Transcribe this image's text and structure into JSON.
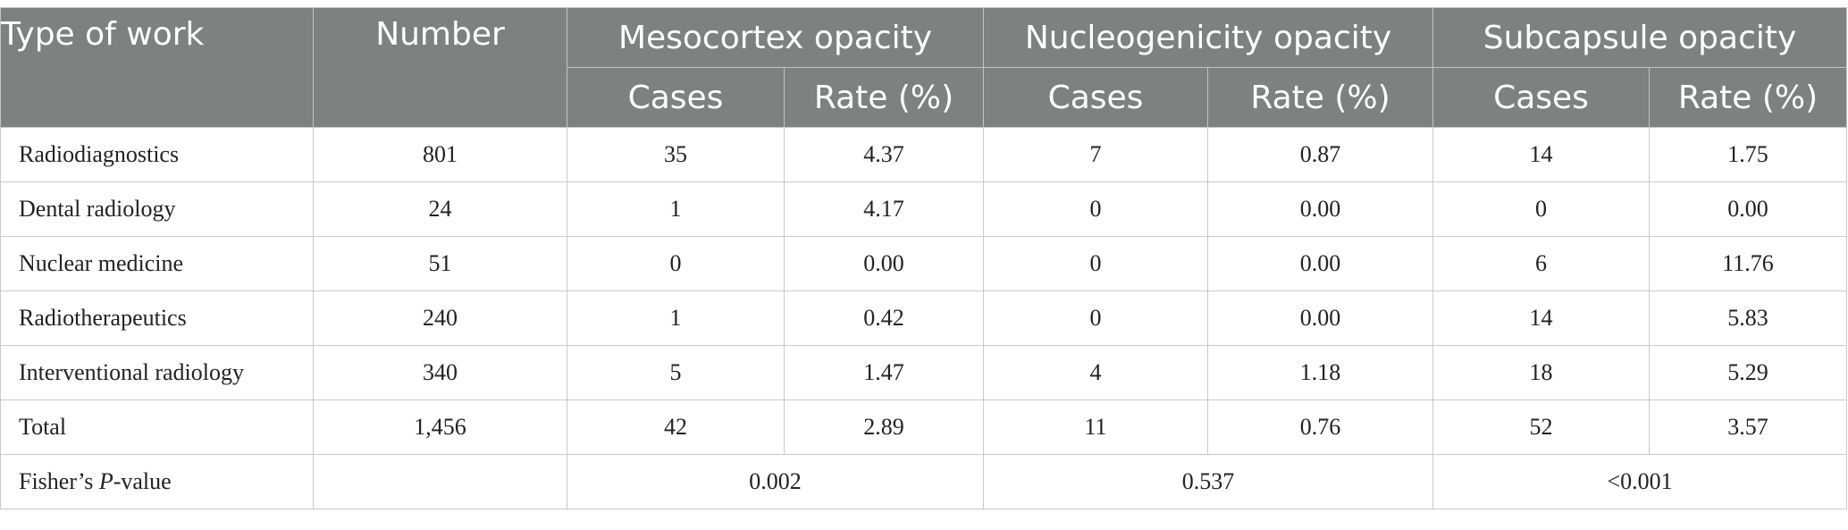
{
  "table": {
    "headers": {
      "type_of_work": "Type of work",
      "number": "Number",
      "groups": [
        "Mesocortex opacity",
        "Nucleogenicity opacity",
        "Subcapsule opacity"
      ],
      "sub": {
        "cases": "Cases",
        "rate": "Rate (%)"
      }
    },
    "rows": [
      {
        "type": "Radiodiagnostics",
        "number": "801",
        "meso_cases": "35",
        "meso_rate": "4.37",
        "nucleo_cases": "7",
        "nucleo_rate": "0.87",
        "sub_cases": "14",
        "sub_rate": "1.75"
      },
      {
        "type": "Dental radiology",
        "number": "24",
        "meso_cases": "1",
        "meso_rate": "4.17",
        "nucleo_cases": "0",
        "nucleo_rate": "0.00",
        "sub_cases": "0",
        "sub_rate": "0.00"
      },
      {
        "type": "Nuclear medicine",
        "number": "51",
        "meso_cases": "0",
        "meso_rate": "0.00",
        "nucleo_cases": "0",
        "nucleo_rate": "0.00",
        "sub_cases": "6",
        "sub_rate": "11.76"
      },
      {
        "type": "Radiotherapeutics",
        "number": "240",
        "meso_cases": "1",
        "meso_rate": "0.42",
        "nucleo_cases": "0",
        "nucleo_rate": "0.00",
        "sub_cases": "14",
        "sub_rate": "5.83"
      },
      {
        "type": "Interventional radiology",
        "number": "340",
        "meso_cases": "5",
        "meso_rate": "1.47",
        "nucleo_cases": "4",
        "nucleo_rate": "1.18",
        "sub_cases": "18",
        "sub_rate": "5.29"
      },
      {
        "type": "Total",
        "number": "1,456",
        "meso_cases": "42",
        "meso_rate": "2.89",
        "nucleo_cases": "11",
        "nucleo_rate": "0.76",
        "sub_cases": "52",
        "sub_rate": "3.57"
      }
    ],
    "fisher": {
      "label_prefix": "Fisher’s ",
      "label_italic": "P",
      "label_suffix": "-value",
      "number": "",
      "meso": "0.002",
      "nucleo": "0.537",
      "sub": "<0.001"
    }
  }
}
